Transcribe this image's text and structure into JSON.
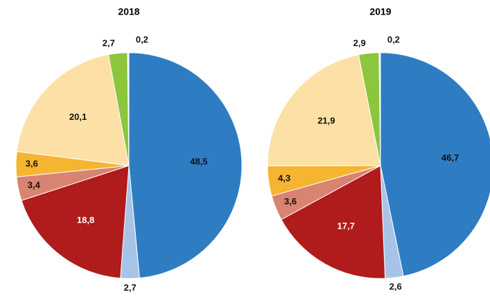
{
  "chart_data": [
    {
      "type": "pie",
      "title": "2018",
      "values": [
        48.5,
        2.7,
        18.8,
        3.4,
        3.6,
        20.1,
        2.7,
        0.2
      ],
      "value_labels": [
        "48,5",
        "2,7",
        "18,8",
        "3,4",
        "3,6",
        "20,1",
        "2,7",
        "0,2"
      ],
      "colors": [
        "#2e7dc3",
        "#a8c3e8",
        "#b01b1b",
        "#d88470",
        "#f5b531",
        "#fde0a5",
        "#8cc63e",
        "#f4f4f4"
      ],
      "label_colors": [
        "#111111",
        "#111111",
        "#ffffff",
        "#111111",
        "#111111",
        "#111111",
        "#111111",
        "#111111"
      ]
    },
    {
      "type": "pie",
      "title": "2019",
      "values": [
        46.7,
        2.6,
        17.7,
        3.6,
        4.3,
        21.9,
        2.9,
        0.2
      ],
      "value_labels": [
        "46,7",
        "2,6",
        "17,7",
        "3,6",
        "4,3",
        "21,9",
        "2,9",
        "0,2"
      ],
      "colors": [
        "#2e7dc3",
        "#a8c3e8",
        "#b01b1b",
        "#d88470",
        "#f5b531",
        "#fde0a5",
        "#8cc63e",
        "#f4f4f4"
      ],
      "label_colors": [
        "#111111",
        "#111111",
        "#ffffff",
        "#111111",
        "#111111",
        "#111111",
        "#111111",
        "#111111"
      ]
    }
  ]
}
